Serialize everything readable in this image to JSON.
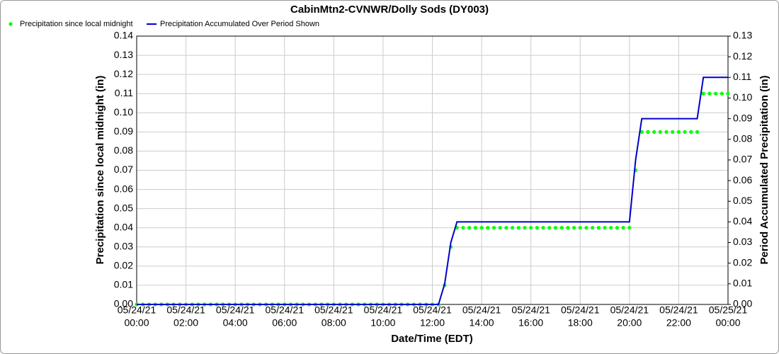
{
  "chart_data": {
    "type": "line",
    "title": "CabinMtn2-CVNWR/Dolly Sods (DY003)",
    "x_label": "Date/Time (EDT)",
    "y_label": "Precipitation since local midnight (in)",
    "y2_label": "Period Accumulated Precipitation (in)",
    "grid": true,
    "x": [
      "05/24/21 00:00",
      "05/24/21 00:15",
      "05/24/21 00:30",
      "05/24/21 00:45",
      "05/24/21 01:00",
      "05/24/21 01:15",
      "05/24/21 01:30",
      "05/24/21 01:45",
      "05/24/21 02:00",
      "05/24/21 02:15",
      "05/24/21 02:30",
      "05/24/21 02:45",
      "05/24/21 03:00",
      "05/24/21 03:15",
      "05/24/21 03:30",
      "05/24/21 03:45",
      "05/24/21 04:00",
      "05/24/21 04:15",
      "05/24/21 04:30",
      "05/24/21 04:45",
      "05/24/21 05:00",
      "05/24/21 05:15",
      "05/24/21 05:30",
      "05/24/21 05:45",
      "05/24/21 06:00",
      "05/24/21 06:15",
      "05/24/21 06:30",
      "05/24/21 06:45",
      "05/24/21 07:00",
      "05/24/21 07:15",
      "05/24/21 07:30",
      "05/24/21 07:45",
      "05/24/21 08:00",
      "05/24/21 08:15",
      "05/24/21 08:30",
      "05/24/21 08:45",
      "05/24/21 09:00",
      "05/24/21 09:15",
      "05/24/21 09:30",
      "05/24/21 09:45",
      "05/24/21 10:00",
      "05/24/21 10:15",
      "05/24/21 10:30",
      "05/24/21 10:45",
      "05/24/21 11:00",
      "05/24/21 11:15",
      "05/24/21 11:30",
      "05/24/21 11:45",
      "05/24/21 12:00",
      "05/24/21 12:15",
      "05/24/21 12:30",
      "05/24/21 12:45",
      "05/24/21 13:00",
      "05/24/21 13:15",
      "05/24/21 13:30",
      "05/24/21 13:45",
      "05/24/21 14:00",
      "05/24/21 14:15",
      "05/24/21 14:30",
      "05/24/21 14:45",
      "05/24/21 15:00",
      "05/24/21 15:15",
      "05/24/21 15:30",
      "05/24/21 15:45",
      "05/24/21 16:00",
      "05/24/21 16:15",
      "05/24/21 16:30",
      "05/24/21 16:45",
      "05/24/21 17:00",
      "05/24/21 17:15",
      "05/24/21 17:30",
      "05/24/21 17:45",
      "05/24/21 18:00",
      "05/24/21 18:15",
      "05/24/21 18:30",
      "05/24/21 18:45",
      "05/24/21 19:00",
      "05/24/21 19:15",
      "05/24/21 19:30",
      "05/24/21 19:45",
      "05/24/21 20:00",
      "05/24/21 20:15",
      "05/24/21 20:30",
      "05/24/21 20:45",
      "05/24/21 21:00",
      "05/24/21 21:15",
      "05/24/21 21:30",
      "05/24/21 21:45",
      "05/24/21 22:00",
      "05/24/21 22:15",
      "05/24/21 22:30",
      "05/24/21 22:45",
      "05/24/21 23:00",
      "05/24/21 23:15",
      "05/24/21 23:30",
      "05/24/21 23:45",
      "05/25/21 00:00"
    ],
    "series": [
      {
        "name": "Precipitation since local midnight",
        "color": "#00ff00",
        "mode": "markers",
        "axis": "y",
        "values": [
          0,
          0,
          0,
          0,
          0,
          0,
          0,
          0,
          0,
          0,
          0,
          0,
          0,
          0,
          0,
          0,
          0,
          0,
          0,
          0,
          0,
          0,
          0,
          0,
          0,
          0,
          0,
          0,
          0,
          0,
          0,
          0,
          0,
          0,
          0,
          0,
          0,
          0,
          0,
          0,
          0,
          0,
          0,
          0,
          0,
          0,
          0,
          0,
          0,
          0,
          0.01,
          0.03,
          0.04,
          0.04,
          0.04,
          0.04,
          0.04,
          0.04,
          0.04,
          0.04,
          0.04,
          0.04,
          0.04,
          0.04,
          0.04,
          0.04,
          0.04,
          0.04,
          0.04,
          0.04,
          0.04,
          0.04,
          0.04,
          0.04,
          0.04,
          0.04,
          0.04,
          0.04,
          0.04,
          0.04,
          0.04,
          0.07,
          0.09,
          0.09,
          0.09,
          0.09,
          0.09,
          0.09,
          0.09,
          0.09,
          0.09,
          0.09,
          0.11,
          0.11,
          0.11,
          0.11,
          0.11
        ]
      },
      {
        "name": "Precipitation Accumulated Over Period Shown",
        "color": "#0000cc",
        "mode": "lines",
        "axis": "y2",
        "values": [
          0,
          0,
          0,
          0,
          0,
          0,
          0,
          0,
          0,
          0,
          0,
          0,
          0,
          0,
          0,
          0,
          0,
          0,
          0,
          0,
          0,
          0,
          0,
          0,
          0,
          0,
          0,
          0,
          0,
          0,
          0,
          0,
          0,
          0,
          0,
          0,
          0,
          0,
          0,
          0,
          0,
          0,
          0,
          0,
          0,
          0,
          0,
          0,
          0,
          0,
          0.01,
          0.03,
          0.04,
          0.04,
          0.04,
          0.04,
          0.04,
          0.04,
          0.04,
          0.04,
          0.04,
          0.04,
          0.04,
          0.04,
          0.04,
          0.04,
          0.04,
          0.04,
          0.04,
          0.04,
          0.04,
          0.04,
          0.04,
          0.04,
          0.04,
          0.04,
          0.04,
          0.04,
          0.04,
          0.04,
          0.04,
          0.07,
          0.09,
          0.09,
          0.09,
          0.09,
          0.09,
          0.09,
          0.09,
          0.09,
          0.09,
          0.09,
          0.11,
          0.11,
          0.11,
          0.11,
          0.11
        ]
      }
    ],
    "xlim": [
      "05/24/21 00:00",
      "05/25/21 00:00"
    ],
    "xticks": [
      {
        "value": "05/24/21 00:00",
        "label": [
          "05/24/21",
          "00:00"
        ]
      },
      {
        "value": "05/24/21 02:00",
        "label": [
          "05/24/21",
          "02:00"
        ]
      },
      {
        "value": "05/24/21 04:00",
        "label": [
          "05/24/21",
          "04:00"
        ]
      },
      {
        "value": "05/24/21 06:00",
        "label": [
          "05/24/21",
          "06:00"
        ]
      },
      {
        "value": "05/24/21 08:00",
        "label": [
          "05/24/21",
          "08:00"
        ]
      },
      {
        "value": "05/24/21 10:00",
        "label": [
          "05/24/21",
          "10:00"
        ]
      },
      {
        "value": "05/24/21 12:00",
        "label": [
          "05/24/21",
          "12:00"
        ]
      },
      {
        "value": "05/24/21 14:00",
        "label": [
          "05/24/21",
          "14:00"
        ]
      },
      {
        "value": "05/24/21 16:00",
        "label": [
          "05/24/21",
          "16:00"
        ]
      },
      {
        "value": "05/24/21 18:00",
        "label": [
          "05/24/21",
          "18:00"
        ]
      },
      {
        "value": "05/24/21 20:00",
        "label": [
          "05/24/21",
          "20:00"
        ]
      },
      {
        "value": "05/24/21 22:00",
        "label": [
          "05/24/21",
          "22:00"
        ]
      },
      {
        "value": "05/25/21 00:00",
        "label": [
          "05/25/21",
          "00:00"
        ]
      }
    ],
    "ylim": [
      0,
      0.14
    ],
    "yticks": [
      {
        "value": 0,
        "label": "0.00"
      },
      {
        "value": 0.01,
        "label": "0.01"
      },
      {
        "value": 0.02,
        "label": "0.02"
      },
      {
        "value": 0.03,
        "label": "0.03"
      },
      {
        "value": 0.04,
        "label": "0.04"
      },
      {
        "value": 0.05,
        "label": "0.05"
      },
      {
        "value": 0.06,
        "label": "0.06"
      },
      {
        "value": 0.07,
        "label": "0.07"
      },
      {
        "value": 0.08,
        "label": "0.08"
      },
      {
        "value": 0.09,
        "label": "0.09"
      },
      {
        "value": 0.1,
        "label": "0.10"
      },
      {
        "value": 0.11,
        "label": "0.11"
      },
      {
        "value": 0.12,
        "label": "0.12"
      },
      {
        "value": 0.13,
        "label": "0.13"
      },
      {
        "value": 0.14,
        "label": "0.14"
      }
    ],
    "y2lim": [
      0,
      0.13
    ],
    "y2ticks": [
      {
        "value": 0,
        "label": "0.00"
      },
      {
        "value": 0.01,
        "label": "0.01"
      },
      {
        "value": 0.02,
        "label": "0.02"
      },
      {
        "value": 0.03,
        "label": "0.03"
      },
      {
        "value": 0.04,
        "label": "0.04"
      },
      {
        "value": 0.05,
        "label": "0.05"
      },
      {
        "value": 0.06,
        "label": "0.06"
      },
      {
        "value": 0.07,
        "label": "0.07"
      },
      {
        "value": 0.08,
        "label": "0.08"
      },
      {
        "value": 0.09,
        "label": "0.09"
      },
      {
        "value": 0.1,
        "label": "0.10"
      },
      {
        "value": 0.11,
        "label": "0.11"
      },
      {
        "value": 0.12,
        "label": "0.12"
      },
      {
        "value": 0.13,
        "label": "0.13"
      }
    ]
  }
}
